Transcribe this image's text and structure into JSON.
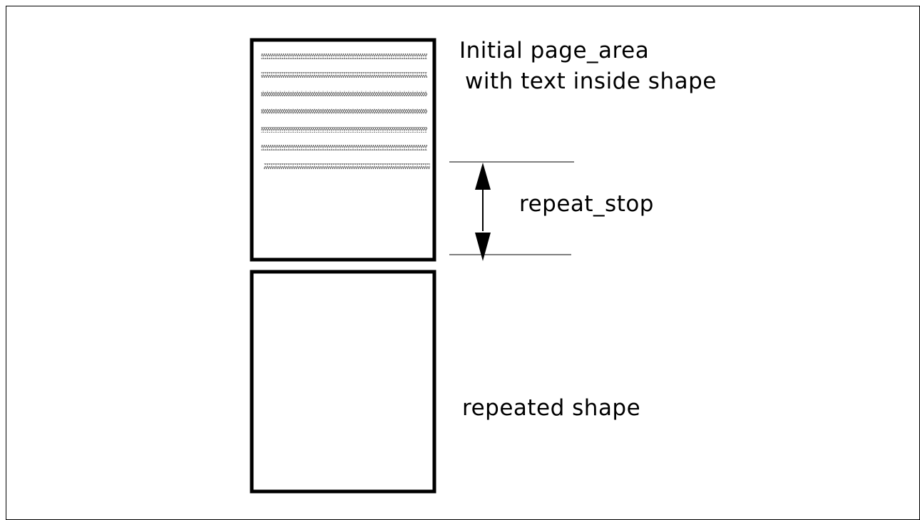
{
  "labels": {
    "initial_line1": "Initial page_area",
    "initial_line2": "with text inside shape",
    "repeat_stop": "repeat_stop",
    "repeated_shape": "repeated shape"
  },
  "colors": {
    "stroke": "#000000",
    "background": "#ffffff",
    "text_fill": "#555555"
  }
}
